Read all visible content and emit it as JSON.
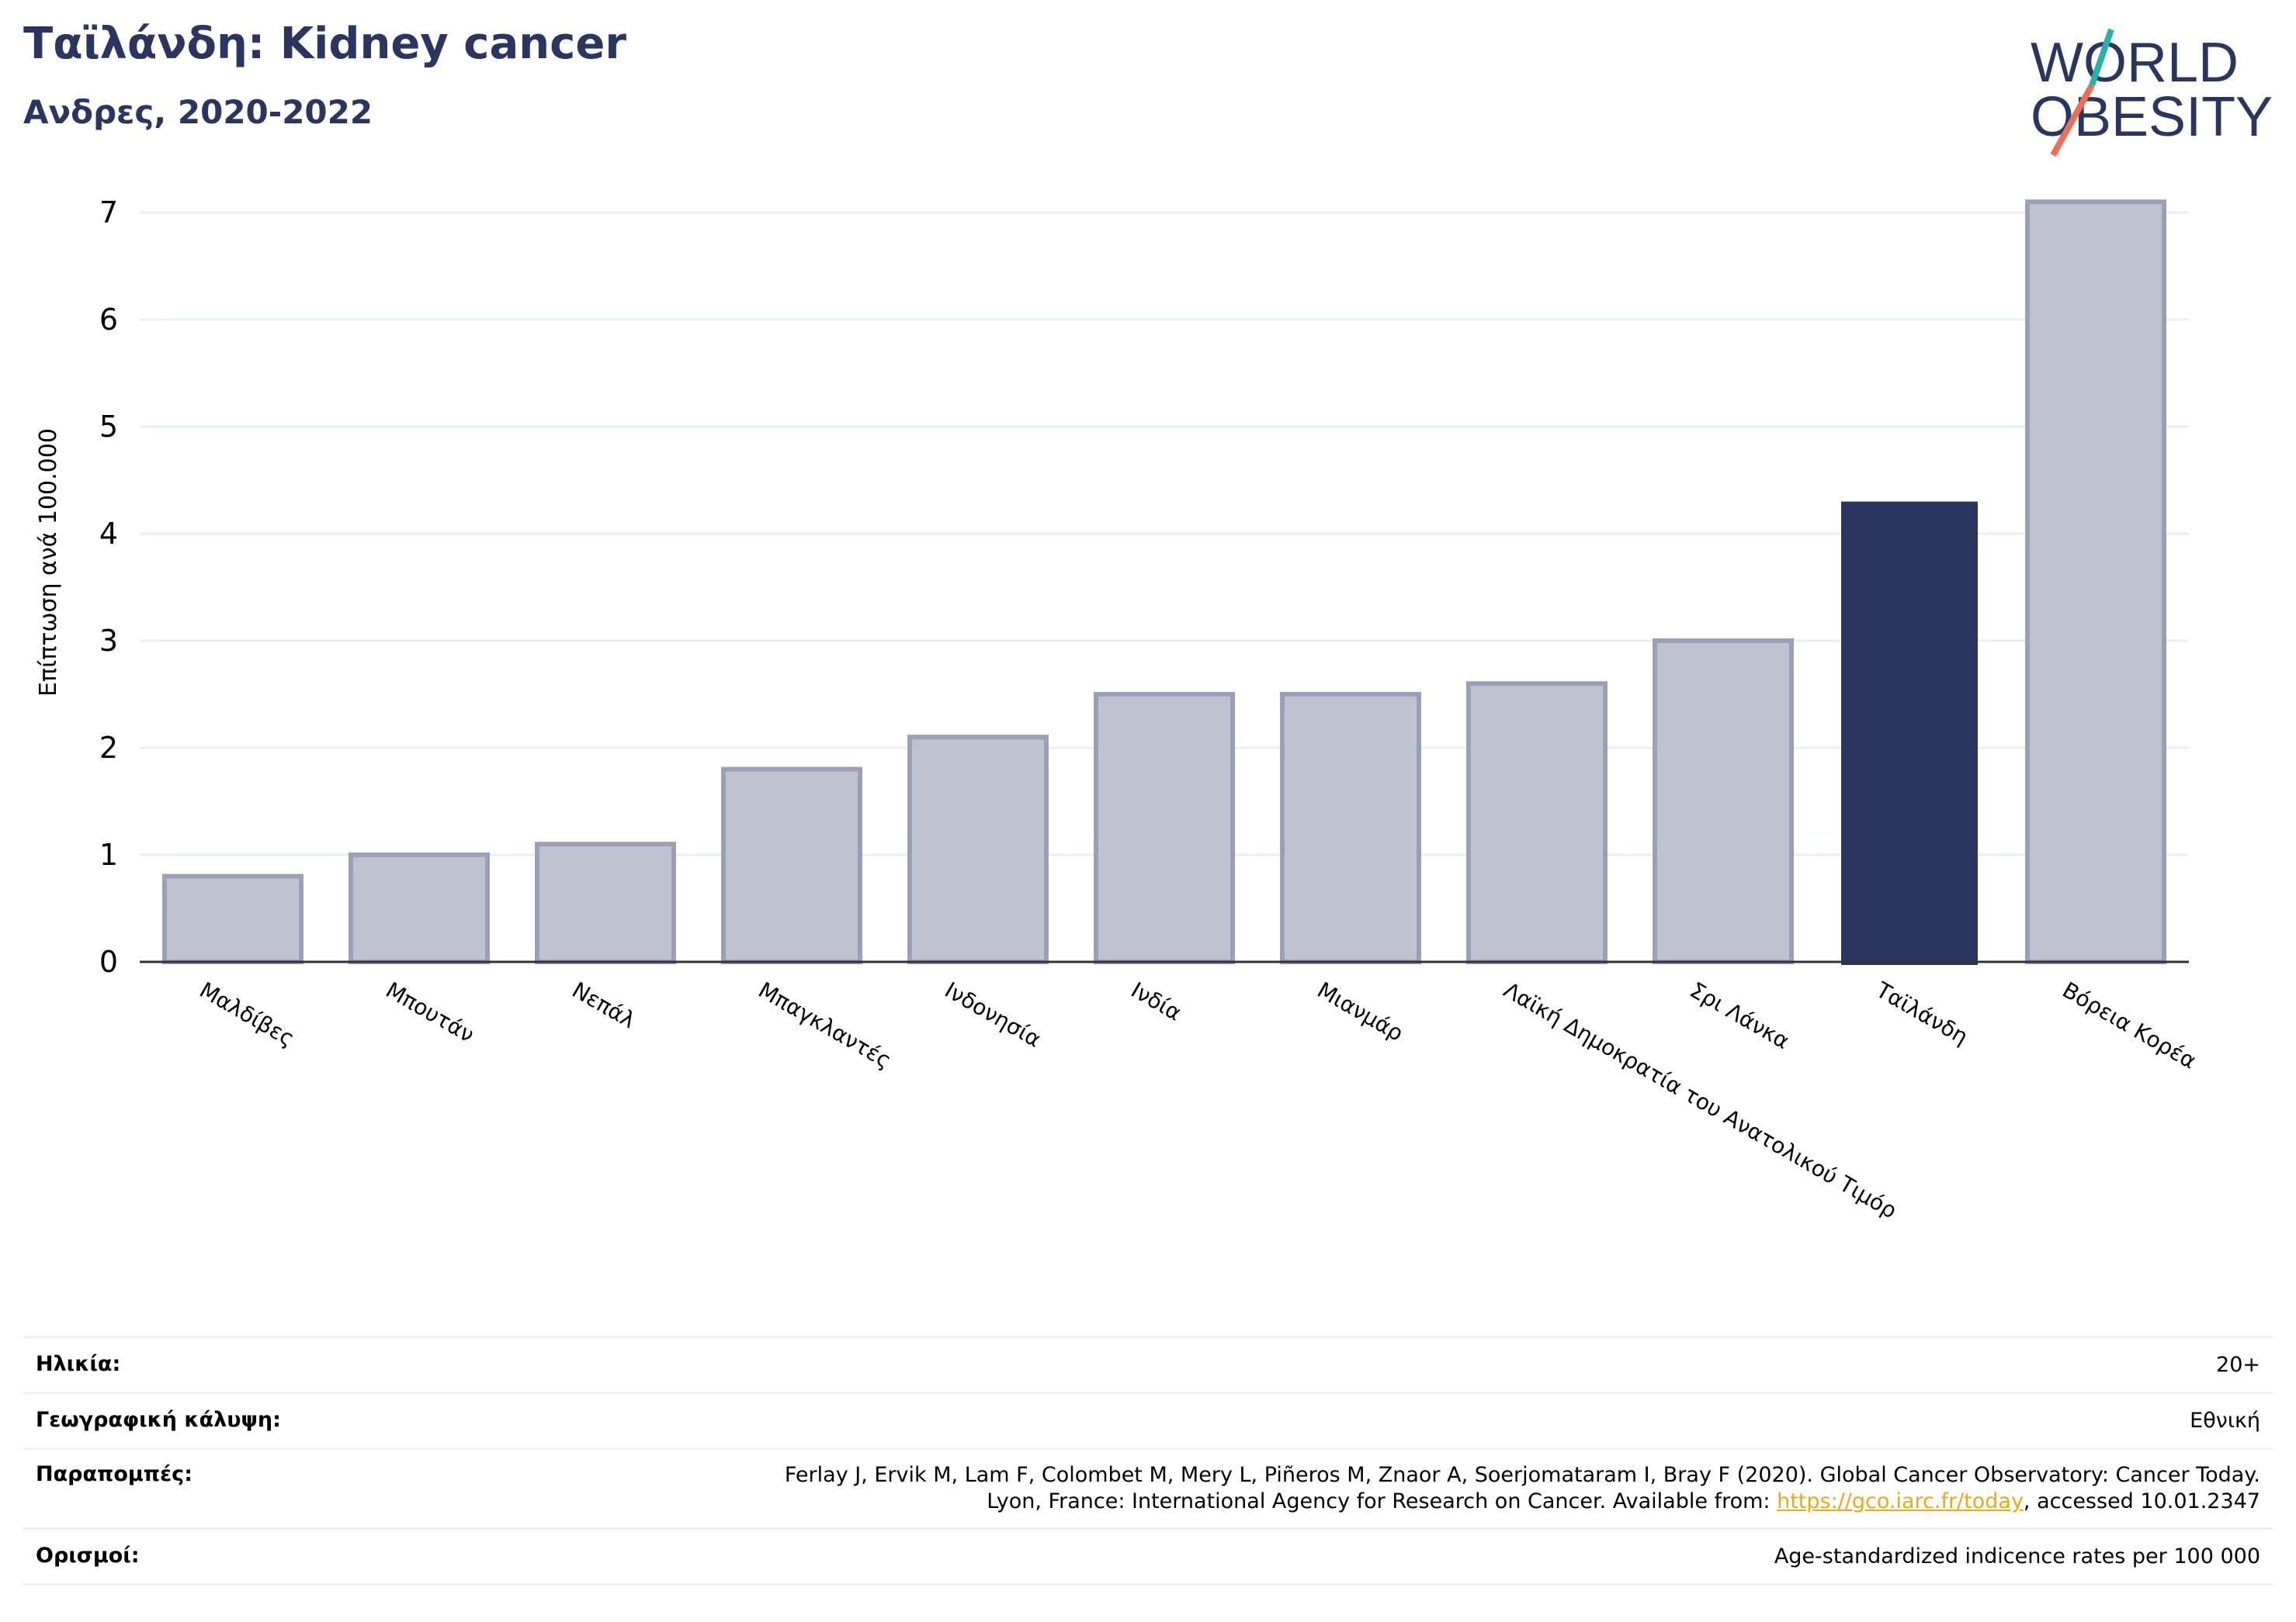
{
  "header": {
    "title": "Ταϊλάνδη: Kidney cancer",
    "subtitle": "Ανδρες, 2020-2022"
  },
  "logo": {
    "line1": "WORLD",
    "line2": "OBESITY",
    "colors": {
      "text": "#2a3560",
      "slash_teal": "#2ab0a8",
      "slash_coral": "#e8705a"
    }
  },
  "chart_data": {
    "type": "bar",
    "title": "",
    "xlabel": "",
    "ylabel": "Επίπτωση ανά 100.000",
    "ylim": [
      0,
      7.2
    ],
    "yticks": [
      0,
      1,
      2,
      3,
      4,
      5,
      6,
      7
    ],
    "grid": true,
    "categories": [
      "Μαλδίβες",
      "Μπουτάν",
      "Νεπάλ",
      "Μπαγκλαντές",
      "Ινδονησία",
      "Ινδία",
      "Μιανμάρ",
      "Λαϊκή Δημοκρατία του Ανατολικού Τιμόρ",
      "Σρι Λάνκα",
      "Ταϊλάνδη",
      "Βόρεια Κορέα"
    ],
    "values": [
      0.8,
      1.0,
      1.1,
      1.8,
      2.1,
      2.5,
      2.5,
      2.6,
      3.0,
      4.3,
      7.1
    ],
    "highlight": "Ταϊλάνδη",
    "colors": {
      "bar": "#bfc3cf",
      "bar_edge": "#9aa0b8",
      "highlight": "#2a3560",
      "grid": "#ebedf2",
      "axis": "#333333"
    }
  },
  "meta": {
    "age_label": "Ηλικία:",
    "age_value": "20+",
    "coverage_label": "Γεωγραφική κάλυψη:",
    "coverage_value": "Εθνική",
    "refs_label": "Παραπομπές:",
    "refs_line1": "Ferlay J, Ervik M, Lam F, Colombet M, Mery L, Piñeros M, Znaor A, Soerjomataram I, Bray F (2020). Global Cancer Observatory: Cancer Today.",
    "refs_line2_pre": "Lyon, France: International Agency for Research on Cancer. Available from: ",
    "refs_link": "https://gco.iarc.fr/today",
    "refs_line2_post": ", accessed 10.01.2347",
    "defs_label": "Ορισμοί:",
    "defs_value": "Age-standardized indicence rates per 100 000"
  }
}
